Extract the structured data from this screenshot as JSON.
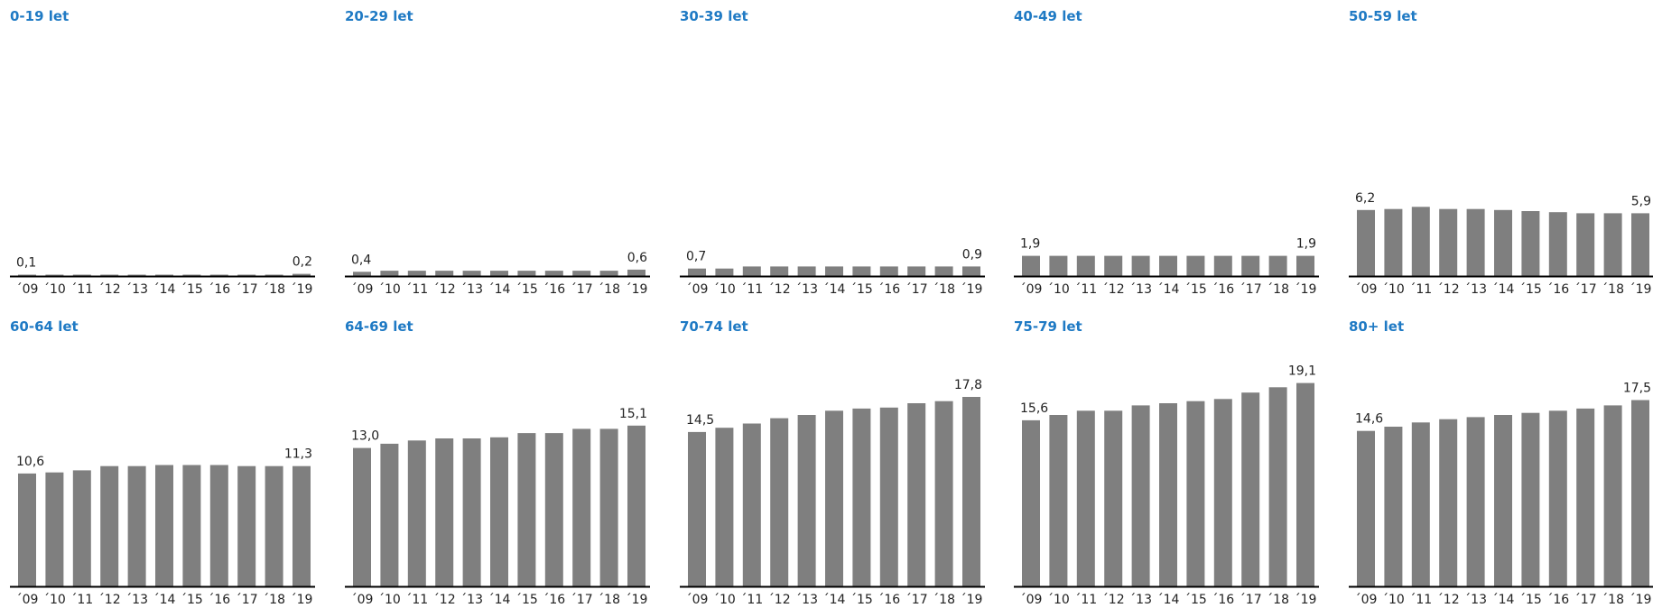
{
  "chart_data": [
    {
      "type": "bar",
      "title": "0-19 let",
      "categories": [
        "´09",
        "´10",
        "´11",
        "´12",
        "´13",
        "´14",
        "´15",
        "´16",
        "´17",
        "´18",
        "´19"
      ],
      "values": [
        0.1,
        0.1,
        0.1,
        0.1,
        0.1,
        0.1,
        0.1,
        0.1,
        0.1,
        0.1,
        0.2
      ],
      "ylim": [
        0,
        20
      ],
      "value_labels": {
        "first": "0,1",
        "last": "0,2"
      }
    },
    {
      "type": "bar",
      "title": "20-29 let",
      "categories": [
        "´09",
        "´10",
        "´11",
        "´12",
        "´13",
        "´14",
        "´15",
        "´16",
        "´17",
        "´18",
        "´19"
      ],
      "values": [
        0.4,
        0.5,
        0.5,
        0.5,
        0.5,
        0.5,
        0.5,
        0.5,
        0.5,
        0.5,
        0.6
      ],
      "ylim": [
        0,
        20
      ],
      "value_labels": {
        "first": "0,4",
        "last": "0,6"
      }
    },
    {
      "type": "bar",
      "title": "30-39 let",
      "categories": [
        "´09",
        "´10",
        "´11",
        "´12",
        "´13",
        "´14",
        "´15",
        "´16",
        "´17",
        "´18",
        "´19"
      ],
      "values": [
        0.7,
        0.7,
        0.9,
        0.9,
        0.9,
        0.9,
        0.9,
        0.9,
        0.9,
        0.9,
        0.9
      ],
      "ylim": [
        0,
        20
      ],
      "value_labels": {
        "first": "0,7",
        "last": "0,9"
      }
    },
    {
      "type": "bar",
      "title": "40-49 let",
      "categories": [
        "´09",
        "´10",
        "´11",
        "´12",
        "´13",
        "´14",
        "´15",
        "´16",
        "´17",
        "´18",
        "´19"
      ],
      "values": [
        1.9,
        1.9,
        1.9,
        1.9,
        1.9,
        1.9,
        1.9,
        1.9,
        1.9,
        1.9,
        1.9
      ],
      "ylim": [
        0,
        20
      ],
      "value_labels": {
        "first": "1,9",
        "last": "1,9"
      }
    },
    {
      "type": "bar",
      "title": "50-59 let",
      "categories": [
        "´09",
        "´10",
        "´11",
        "´12",
        "´13",
        "´14",
        "´15",
        "´16",
        "´17",
        "´18",
        "´19"
      ],
      "values": [
        6.2,
        6.3,
        6.5,
        6.3,
        6.3,
        6.2,
        6.1,
        6.0,
        5.9,
        5.9,
        5.9
      ],
      "ylim": [
        0,
        20
      ],
      "value_labels": {
        "first": "6,2",
        "last": "5,9"
      }
    },
    {
      "type": "bar",
      "title": "60-64 let",
      "categories": [
        "´09",
        "´10",
        "´11",
        "´12",
        "´13",
        "´14",
        "´15",
        "´16",
        "´17",
        "´18",
        "´19"
      ],
      "values": [
        10.6,
        10.7,
        10.9,
        11.3,
        11.3,
        11.4,
        11.4,
        11.4,
        11.3,
        11.3,
        11.3
      ],
      "ylim": [
        0,
        20
      ],
      "value_labels": {
        "first": "10,6",
        "last": "11,3"
      }
    },
    {
      "type": "bar",
      "title": "64-69 let",
      "categories": [
        "´09",
        "´10",
        "´11",
        "´12",
        "´13",
        "´14",
        "´15",
        "´16",
        "´17",
        "´18",
        "´19"
      ],
      "values": [
        13.0,
        13.4,
        13.7,
        13.9,
        13.9,
        14.0,
        14.4,
        14.4,
        14.8,
        14.8,
        15.1
      ],
      "ylim": [
        0,
        20
      ],
      "value_labels": {
        "first": "13,0",
        "last": "15,1"
      }
    },
    {
      "type": "bar",
      "title": "70-74 let",
      "categories": [
        "´09",
        "´10",
        "´11",
        "´12",
        "´13",
        "´14",
        "´15",
        "´16",
        "´17",
        "´18",
        "´19"
      ],
      "values": [
        14.5,
        14.9,
        15.3,
        15.8,
        16.1,
        16.5,
        16.7,
        16.8,
        17.2,
        17.4,
        17.8
      ],
      "ylim": [
        0,
        20
      ],
      "value_labels": {
        "first": "14,5",
        "last": "17,8"
      }
    },
    {
      "type": "bar",
      "title": "75-79 let",
      "categories": [
        "´09",
        "´10",
        "´11",
        "´12",
        "´13",
        "´14",
        "´15",
        "´16",
        "´17",
        "´18",
        "´19"
      ],
      "values": [
        15.6,
        16.1,
        16.5,
        16.5,
        17.0,
        17.2,
        17.4,
        17.6,
        18.2,
        18.7,
        19.1
      ],
      "ylim": [
        0,
        20
      ],
      "value_labels": {
        "first": "15,6",
        "last": "19,1"
      }
    },
    {
      "type": "bar",
      "title": "80+ let",
      "categories": [
        "´09",
        "´10",
        "´11",
        "´12",
        "´13",
        "´14",
        "´15",
        "´16",
        "´17",
        "´18",
        "´19"
      ],
      "values": [
        14.6,
        15.0,
        15.4,
        15.7,
        15.9,
        16.1,
        16.3,
        16.5,
        16.7,
        17.0,
        17.5
      ],
      "ylim": [
        0,
        20
      ],
      "value_labels": {
        "first": "14,6",
        "last": "17,5"
      }
    }
  ],
  "colors": {
    "title": "#1f7ac4",
    "bar": "#7f7f7f",
    "axis": "#000000",
    "text": "#222222"
  }
}
